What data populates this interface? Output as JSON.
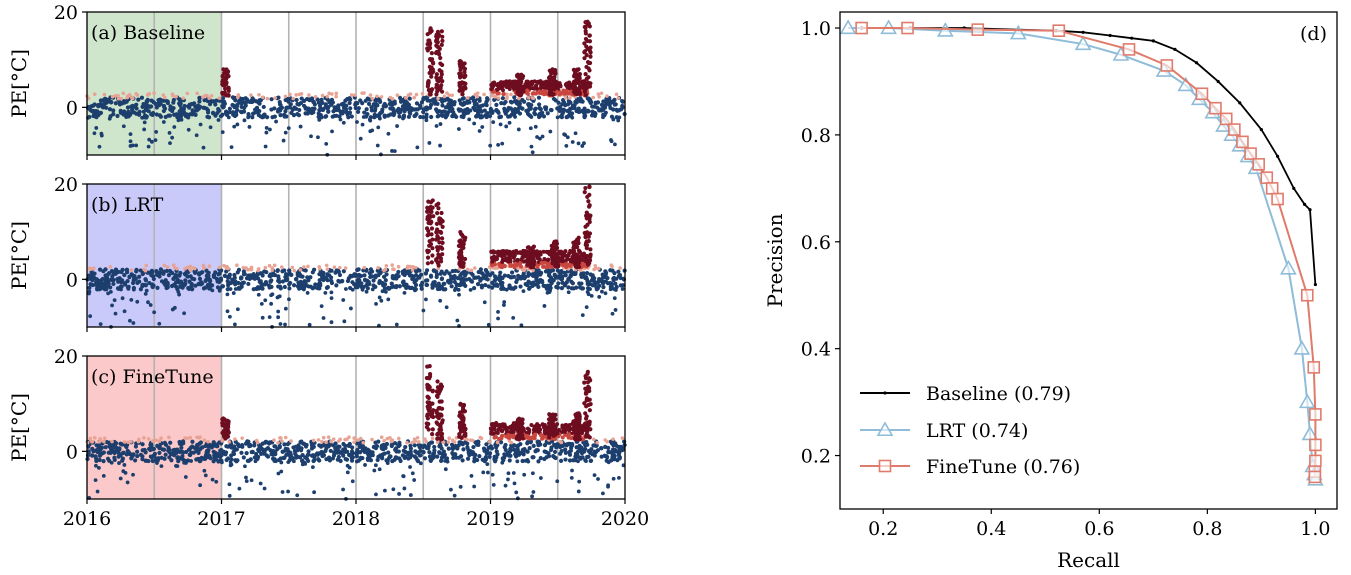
{
  "chart_data": [
    {
      "type": "scatter",
      "panel_label": "(a) Baseline",
      "ylabel": "PE[°C]",
      "xlabel": "",
      "xlim": [
        2016,
        2020
      ],
      "ylim": [
        -10,
        20
      ],
      "yticks": [
        0,
        20
      ],
      "ytick_labels": [
        "0",
        "20"
      ],
      "xticks": [
        2016,
        2017,
        2018,
        2019,
        2020
      ],
      "xtick_labels": [
        "",
        "",
        "",
        "",
        ""
      ],
      "grid_x": [
        2016.5,
        2017,
        2017.5,
        2018,
        2018.5,
        2019,
        2019.5
      ],
      "shaded_span": [
        2016,
        2017
      ],
      "shade_color": "#cfe6cd",
      "bursts": [
        {
          "x": 2017.03,
          "ymax": 8
        },
        {
          "x": 2018.55,
          "ymax": 17
        },
        {
          "x": 2018.62,
          "ymax": 16
        },
        {
          "x": 2018.79,
          "ymax": 10
        },
        {
          "x": 2019.22,
          "ymax": 7
        },
        {
          "x": 2019.46,
          "ymax": 8
        },
        {
          "x": 2019.64,
          "ymax": 8
        },
        {
          "x": 2019.72,
          "ymax": 18
        }
      ],
      "elevated_band": [
        {
          "x0": 2019.0,
          "x1": 2019.72,
          "y": 4.5
        }
      ]
    },
    {
      "type": "scatter",
      "panel_label": "(b) LRT",
      "ylabel": "PE[°C]",
      "xlabel": "",
      "xlim": [
        2016,
        2020
      ],
      "ylim": [
        -10,
        20
      ],
      "yticks": [
        0,
        20
      ],
      "ytick_labels": [
        "0",
        "20"
      ],
      "xticks": [
        2016,
        2017,
        2018,
        2019,
        2020
      ],
      "xtick_labels": [
        "",
        "",
        "",
        "",
        ""
      ],
      "grid_x": [
        2016.5,
        2017,
        2017.5,
        2018,
        2018.5,
        2019,
        2019.5
      ],
      "shaded_span": [
        2016,
        2017
      ],
      "shade_color": "#c9c9fa",
      "bursts": [
        {
          "x": 2018.55,
          "ymax": 17
        },
        {
          "x": 2018.62,
          "ymax": 16
        },
        {
          "x": 2018.79,
          "ymax": 10
        },
        {
          "x": 2019.3,
          "ymax": 7
        },
        {
          "x": 2019.48,
          "ymax": 8
        },
        {
          "x": 2019.64,
          "ymax": 9
        },
        {
          "x": 2019.72,
          "ymax": 20
        }
      ],
      "elevated_band": [
        {
          "x0": 2019.0,
          "x1": 2019.72,
          "y": 5
        }
      ]
    },
    {
      "type": "scatter",
      "panel_label": "(c) FineTune",
      "ylabel": "PE[°C]",
      "xlabel": "",
      "xlim": [
        2016,
        2020
      ],
      "ylim": [
        -10,
        20
      ],
      "yticks": [
        0,
        20
      ],
      "ytick_labels": [
        "0",
        "20"
      ],
      "xticks": [
        2016,
        2017,
        2018,
        2019,
        2020
      ],
      "xtick_labels": [
        "2016",
        "2017",
        "2018",
        "2019",
        "2020"
      ],
      "grid_x": [
        2016.5,
        2017,
        2018,
        2018.5,
        2019,
        2019.5
      ],
      "shaded_span": [
        2016,
        2017
      ],
      "shade_color": "#fbc9c9",
      "bursts": [
        {
          "x": 2017.03,
          "ymax": 7
        },
        {
          "x": 2018.55,
          "ymax": 18
        },
        {
          "x": 2018.62,
          "ymax": 16
        },
        {
          "x": 2018.79,
          "ymax": 10
        },
        {
          "x": 2019.22,
          "ymax": 7
        },
        {
          "x": 2019.46,
          "ymax": 8
        },
        {
          "x": 2019.64,
          "ymax": 8
        },
        {
          "x": 2019.72,
          "ymax": 17
        }
      ],
      "elevated_band": [
        {
          "x0": 2019.0,
          "x1": 2019.72,
          "y": 5
        }
      ]
    },
    {
      "type": "line",
      "panel_label": "(d)",
      "xlabel": "Recall",
      "ylabel": "Precision",
      "xlim": [
        0.12,
        1.04
      ],
      "ylim": [
        0.1,
        1.03
      ],
      "xticks": [
        0.2,
        0.4,
        0.6,
        0.8,
        1.0
      ],
      "xtick_labels": [
        "0.2",
        "0.4",
        "0.6",
        "0.8",
        "1.0"
      ],
      "yticks": [
        0.2,
        0.4,
        0.6,
        0.8,
        1.0
      ],
      "ytick_labels": [
        "0.2",
        "0.4",
        "0.6",
        "0.8",
        "1.0"
      ],
      "grid": false,
      "legend_position": "lower-left",
      "series": [
        {
          "name": "Baseline (0.79)",
          "color": "#000000",
          "marker": "dot",
          "x": [
            0.16,
            0.25,
            0.35,
            0.45,
            0.52,
            0.57,
            0.62,
            0.66,
            0.7,
            0.74,
            0.78,
            0.82,
            0.86,
            0.9,
            0.93,
            0.96,
            0.98,
            0.99,
            1.0
          ],
          "y": [
            1.0,
            1.0,
            1.0,
            0.997,
            0.995,
            0.992,
            0.986,
            0.981,
            0.976,
            0.96,
            0.935,
            0.9,
            0.86,
            0.81,
            0.76,
            0.7,
            0.67,
            0.66,
            0.52
          ]
        },
        {
          "name": "LRT (0.74)",
          "color": "#8fbcd8",
          "marker": "triangle",
          "x": [
            0.135,
            0.21,
            0.315,
            0.45,
            0.57,
            0.64,
            0.72,
            0.76,
            0.785,
            0.81,
            0.83,
            0.845,
            0.86,
            0.875,
            0.89,
            0.95,
            0.975,
            0.985,
            0.99,
            0.995,
            0.998,
            1.0
          ],
          "y": [
            1.0,
            1.0,
            0.995,
            0.99,
            0.97,
            0.95,
            0.92,
            0.893,
            0.867,
            0.842,
            0.817,
            0.8,
            0.78,
            0.76,
            0.738,
            0.55,
            0.4,
            0.3,
            0.24,
            0.18,
            0.165,
            0.155
          ]
        },
        {
          "name": "FineTune (0.76)",
          "color": "#e07b6b",
          "marker": "square",
          "x": [
            0.16,
            0.245,
            0.375,
            0.525,
            0.655,
            0.725,
            0.79,
            0.815,
            0.835,
            0.85,
            0.865,
            0.88,
            0.895,
            0.91,
            0.92,
            0.93,
            0.985,
            0.997,
            1.0,
            1.0,
            1.0,
            0.999,
            0.999
          ],
          "y": [
            1.0,
            1.0,
            0.997,
            0.995,
            0.96,
            0.93,
            0.877,
            0.85,
            0.83,
            0.81,
            0.787,
            0.765,
            0.745,
            0.72,
            0.7,
            0.68,
            0.5,
            0.365,
            0.277,
            0.22,
            0.19,
            0.17,
            0.16
          ]
        }
      ]
    }
  ]
}
